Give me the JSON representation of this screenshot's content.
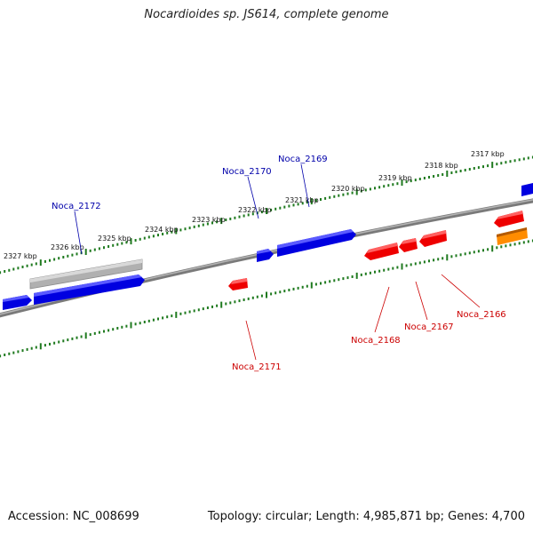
{
  "title": "Nocardioides sp. JS614, complete genome",
  "footer": {
    "accession": "Accession: NC_008699",
    "summary": "Topology: circular; Length: 4,985,871 bp; Genes: 4,700"
  },
  "colors": {
    "background": "#ffffff",
    "backbone": "#7a7a7a",
    "tick": "#1f7a1f",
    "forward_gene": "#0000e0",
    "reverse_gene": "#ee0000",
    "highlight_gene": "#ff8c00",
    "rna_gene": "#b0b0b0",
    "forward_label": "#0000aa",
    "reverse_label": "#cc0000"
  },
  "ticks": [
    "2327 kbp",
    "2326 kbp",
    "2325 kbp",
    "2324 kbp",
    "2323 kbp",
    "2322 kbp",
    "2321 kbp",
    "2320 kbp",
    "2319 kbp",
    "2318 kbp",
    "2317 kbp"
  ],
  "genes": {
    "forward": [
      "Noca_2172",
      "Noca_2170",
      "Noca_2169"
    ],
    "reverse": [
      "Noca_2171",
      "Noca_2168",
      "Noca_2167",
      "Noca_2166"
    ]
  }
}
